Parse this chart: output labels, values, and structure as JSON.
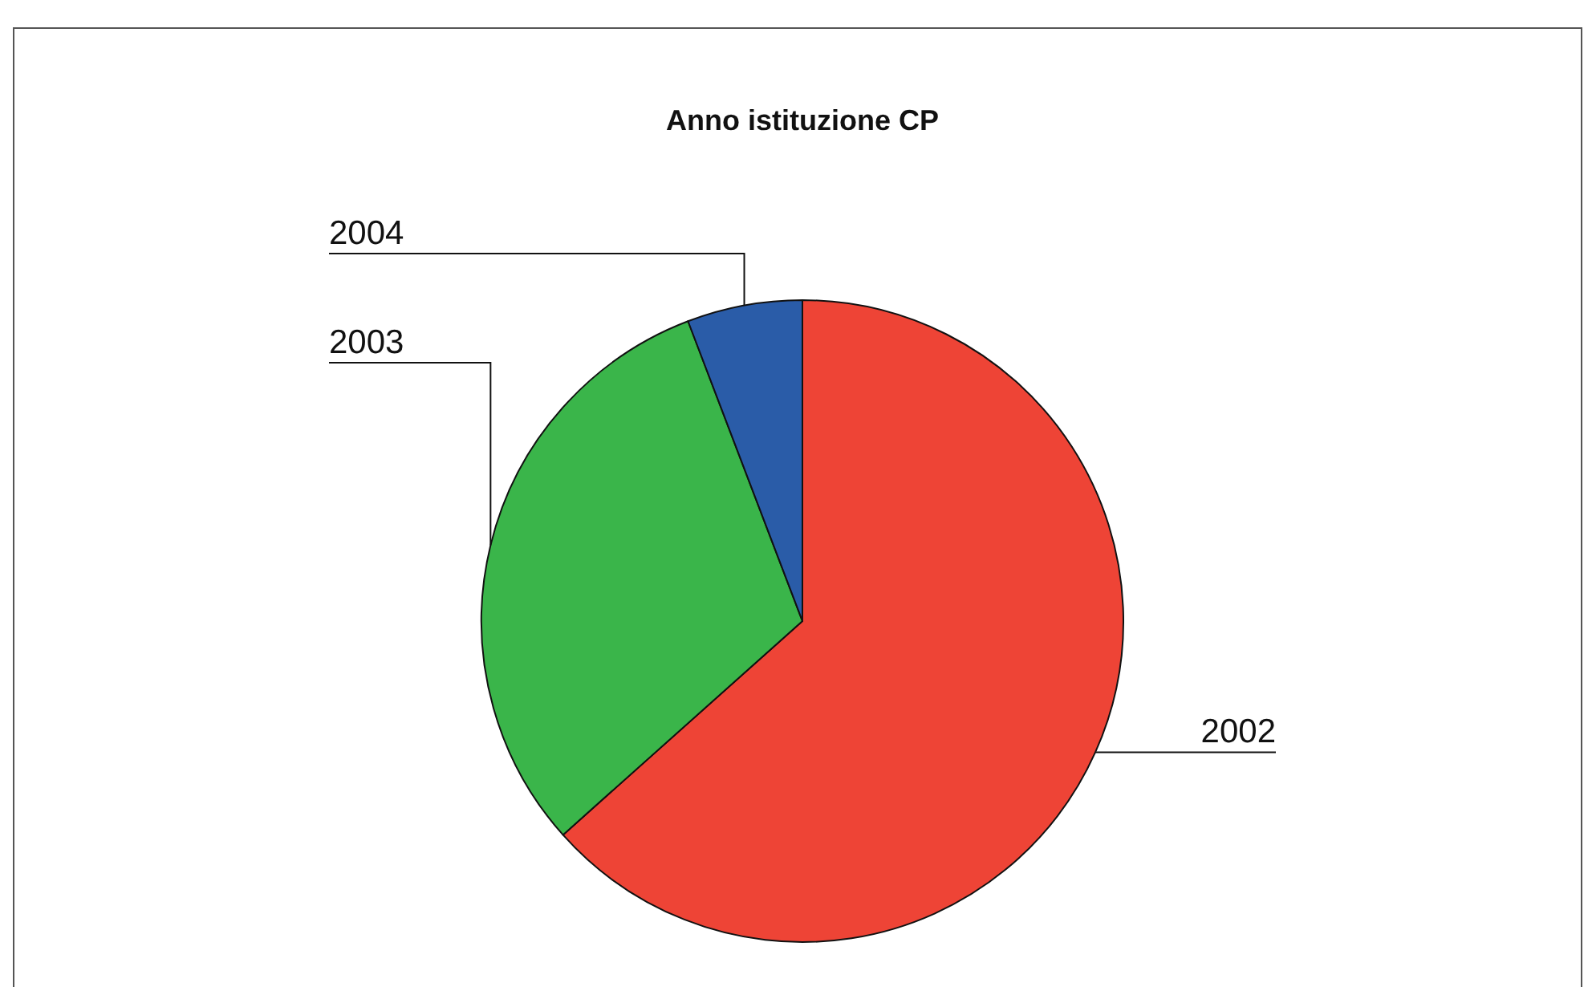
{
  "chart_data": {
    "type": "pie",
    "title": "Anno istituzione CP",
    "categories": [
      "2002",
      "2003",
      "2004"
    ],
    "values": [
      63.4,
      30.8,
      5.8
    ],
    "colors": [
      "#ee4436",
      "#3ab54a",
      "#2a5ca8"
    ],
    "legend": false
  }
}
